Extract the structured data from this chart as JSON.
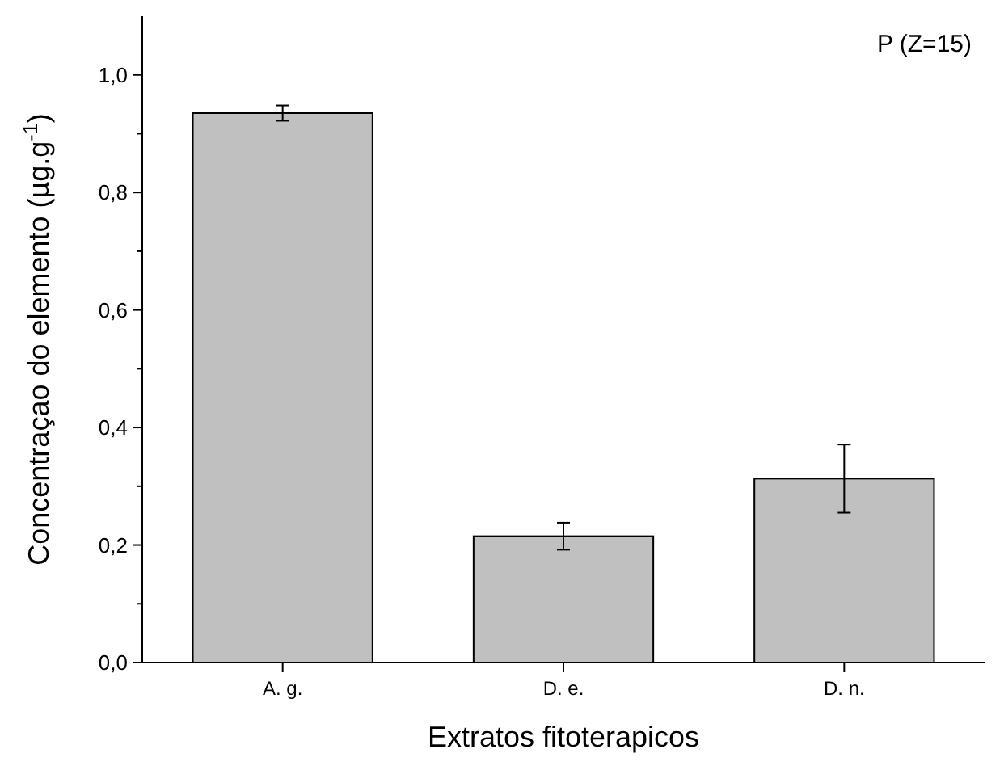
{
  "chart_data": {
    "type": "bar",
    "xlabel": "Extratos fitoterapicos",
    "ylabel": "Concentraçao do elemento (µg.g$^{-1}$)",
    "annotations": [
      "P (Z=15)"
    ],
    "categories": [
      "A. g.",
      "D. e.",
      "D. n."
    ],
    "values": [
      0.935,
      0.215,
      0.313
    ],
    "errors": [
      0.013,
      0.023,
      0.058
    ],
    "color": "#c0c0c0",
    "ylim": [
      0,
      1.1
    ],
    "yticks": [
      {
        "value": 0,
        "label": "0,0"
      },
      {
        "value": 0.1,
        "label": null
      },
      {
        "value": 0.2,
        "label": "0,2"
      },
      {
        "value": 0.3,
        "label": null
      },
      {
        "value": 0.4,
        "label": "0,4"
      },
      {
        "value": 0.5,
        "label": null
      },
      {
        "value": 0.6,
        "label": "0,6"
      },
      {
        "value": 0.7,
        "label": null
      },
      {
        "value": 0.8,
        "label": "0,8"
      },
      {
        "value": 0.9,
        "label": null
      },
      {
        "value": 1,
        "label": "1,0"
      }
    ],
    "grid": false
  }
}
